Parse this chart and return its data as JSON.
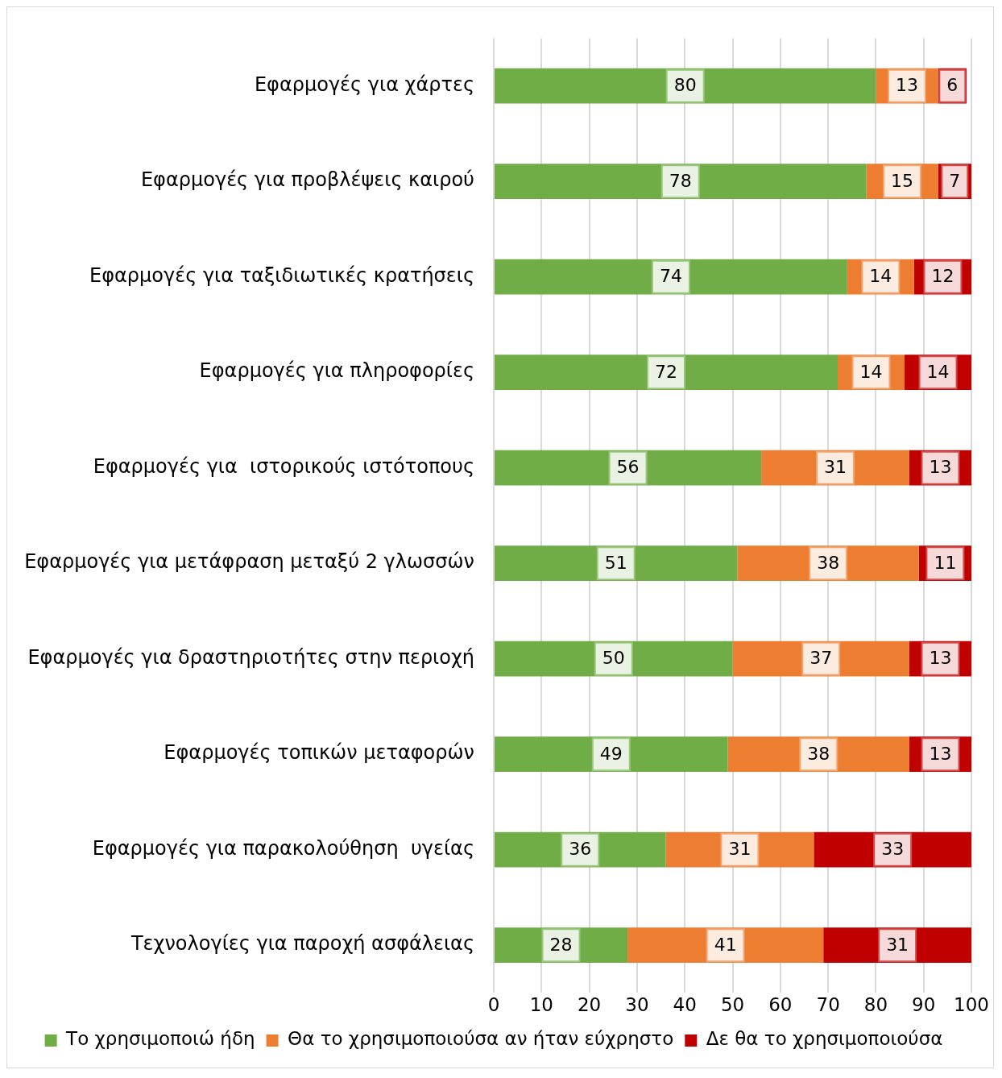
{
  "chart_data": {
    "type": "bar",
    "orientation": "horizontal",
    "stacked": true,
    "categories": [
      "Εφαρμογές για χάρτες",
      "Εφαρμογές για προβλέψεις καιρού",
      "Εφαρμογές για ταξιδιωτικές κρατήσεις",
      "Εφαρμογές για πληροφορίες",
      "Εφαρμογές για  ιστορικούς ιστότοπους",
      "Εφαρμογές για μετάφραση μεταξύ 2 γλωσσών",
      "Εφαρμογές για δραστηριοτήτες στην περιοχή",
      "Εφαρμογές τοπικών μεταφορών",
      "Εφαρμογές για παρακολούθηση  υγείας",
      "Τεχνολογίες για παροχή ασφάλειας"
    ],
    "series": [
      {
        "name": "Το χρησιμοποιώ ήδη",
        "color": "#70ad47",
        "values": [
          80,
          78,
          74,
          72,
          56,
          51,
          50,
          49,
          36,
          28
        ]
      },
      {
        "name": "Θα το χρησιμοποιούσα αν ήταν εύχρηστο",
        "color": "#ed7d31",
        "values": [
          13,
          15,
          14,
          14,
          31,
          38,
          37,
          38,
          31,
          41
        ]
      },
      {
        "name": "Δε θα το χρησιμοποιούσα",
        "color": "#c00000",
        "values": [
          6,
          7,
          12,
          14,
          13,
          11,
          13,
          13,
          33,
          31
        ]
      }
    ],
    "xlim": [
      0,
      100
    ],
    "xticks": [
      0,
      10,
      20,
      30,
      40,
      50,
      60,
      70,
      80,
      90,
      100
    ],
    "grid": "x",
    "legend": "bottom",
    "data_labels": true
  }
}
